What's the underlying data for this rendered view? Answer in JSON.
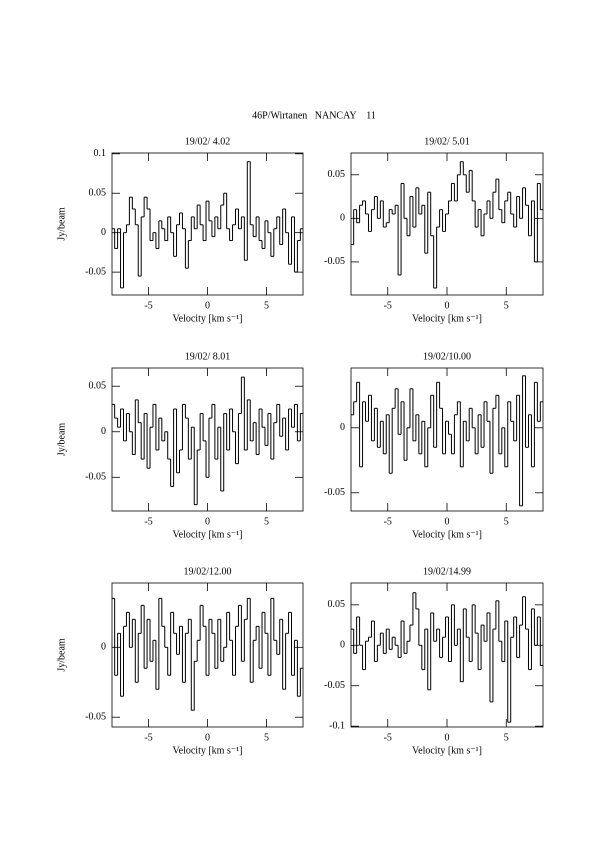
{
  "title": "46P/Wirtanen   NANCAY    11",
  "chart_data": [
    {
      "type": "step",
      "title": "19/02/ 4.02",
      "x_label": "Velocity [km s⁻¹]",
      "y_label": "Jy/beam",
      "x": [
        -8,
        -7.75,
        -7.5,
        -7.25,
        -7,
        -6.75,
        -6.5,
        -6.25,
        -6,
        -5.75,
        -5.5,
        -5.25,
        -5,
        -4.75,
        -4.5,
        -4.25,
        -4,
        -3.75,
        -3.5,
        -3.25,
        -3,
        -2.75,
        -2.5,
        -2.25,
        -2,
        -1.75,
        -1.5,
        -1.25,
        -1,
        -0.75,
        -0.5,
        -0.25,
        0,
        0.25,
        0.5,
        0.75,
        1,
        1.25,
        1.5,
        1.75,
        2,
        2.25,
        2.5,
        2.75,
        3,
        3.25,
        3.5,
        3.75,
        4,
        4.25,
        4.5,
        4.75,
        5,
        5.25,
        5.5,
        5.75,
        6,
        6.25,
        6.5,
        6.75,
        7,
        7.25,
        7.5,
        7.75,
        8
      ],
      "values": [
        0.005,
        -0.02,
        0.005,
        -0.07,
        0,
        0.01,
        0.045,
        0.03,
        0.01,
        -0.055,
        0.02,
        0.045,
        0.03,
        -0.01,
        0,
        -0.02,
        0.015,
        0.005,
        -0.01,
        0.02,
        0,
        -0.03,
        0.01,
        0.025,
        0.005,
        -0.045,
        -0.01,
        0.02,
        0.005,
        0.035,
        0.01,
        -0.01,
        0.04,
        0.015,
        -0.005,
        0.02,
        0.005,
        0.035,
        0.05,
        0.005,
        -0.01,
        0.01,
        0.03,
        0.005,
        0.02,
        -0.035,
        0.09,
        0.01,
        -0.005,
        0.02,
        -0.01,
        -0.02,
        0.015,
        0,
        -0.03,
        0.005,
        0.02,
        -0.015,
        0.03,
        0,
        -0.04,
        0.02,
        -0.05,
        -0.01,
        0.005
      ],
      "xlim": [
        -8.1,
        8.1
      ],
      "ylim": [
        -0.079,
        0.101
      ],
      "xticks": [
        -5,
        0,
        5
      ],
      "yticks": [
        -0.05,
        0,
        0.05,
        0.1
      ],
      "color": "#000000"
    },
    {
      "type": "step",
      "title": "19/02/ 5.01",
      "x_label": "Velocity [km s⁻¹]",
      "x": [
        -8,
        -7.75,
        -7.5,
        -7.25,
        -7,
        -6.75,
        -6.5,
        -6.25,
        -6,
        -5.75,
        -5.5,
        -5.25,
        -5,
        -4.75,
        -4.5,
        -4.25,
        -4,
        -3.75,
        -3.5,
        -3.25,
        -3,
        -2.75,
        -2.5,
        -2.25,
        -2,
        -1.75,
        -1.5,
        -1.25,
        -1,
        -0.75,
        -0.5,
        -0.25,
        0,
        0.25,
        0.5,
        0.75,
        1,
        1.25,
        1.5,
        1.75,
        2,
        2.25,
        2.5,
        2.75,
        3,
        3.25,
        3.5,
        3.75,
        4,
        4.25,
        4.5,
        4.75,
        5,
        5.25,
        5.5,
        5.75,
        6,
        6.25,
        6.5,
        6.75,
        7,
        7.25,
        7.5,
        7.75,
        8
      ],
      "values": [
        -0.03,
        0.01,
        -0.005,
        0.015,
        0.02,
        0.005,
        -0.015,
        0.01,
        0.025,
        0,
        0.02,
        -0.01,
        -0.005,
        0.01,
        0.005,
        0.015,
        -0.065,
        0.04,
        0,
        -0.02,
        0.025,
        -0.01,
        0.035,
        0.005,
        0.015,
        -0.04,
        0.03,
        -0.02,
        -0.08,
        -0.01,
        0.01,
        -0.015,
        0.005,
        0.02,
        0.04,
        0.02,
        0.05,
        0.065,
        0.05,
        0.03,
        0.055,
        0.02,
        -0.01,
        0.01,
        -0.02,
        0.005,
        0.02,
        0,
        0.03,
        0.045,
        0.01,
        -0.005,
        0.02,
        0.03,
        0.005,
        -0.01,
        0.025,
        0,
        0.035,
        0.015,
        -0.02,
        0.02,
        -0.05,
        0.04,
        0.01
      ],
      "xlim": [
        -8.1,
        8.1
      ],
      "ylim": [
        -0.088,
        0.075
      ],
      "xticks": [
        -5,
        0,
        5
      ],
      "yticks": [
        -0.05,
        0,
        0.05
      ],
      "color": "#000000"
    },
    {
      "type": "step",
      "title": "19/02/ 8.01",
      "x_label": "Velocity [km s⁻¹]",
      "y_label": "Jy/beam",
      "x": [
        -8,
        -7.75,
        -7.5,
        -7.25,
        -7,
        -6.75,
        -6.5,
        -6.25,
        -6,
        -5.75,
        -5.5,
        -5.25,
        -5,
        -4.75,
        -4.5,
        -4.25,
        -4,
        -3.75,
        -3.5,
        -3.25,
        -3,
        -2.75,
        -2.5,
        -2.25,
        -2,
        -1.75,
        -1.5,
        -1.25,
        -1,
        -0.75,
        -0.5,
        -0.25,
        0,
        0.25,
        0.5,
        0.75,
        1,
        1.25,
        1.5,
        1.75,
        2,
        2.25,
        2.5,
        2.75,
        3,
        3.25,
        3.5,
        3.75,
        4,
        4.25,
        4.5,
        4.75,
        5,
        5.25,
        5.5,
        5.75,
        6,
        6.25,
        6.5,
        6.75,
        7,
        7.25,
        7.5,
        7.75,
        8
      ],
      "values": [
        0.03,
        0.015,
        0.005,
        0.025,
        -0.01,
        0.02,
        0,
        -0.025,
        0.035,
        0.01,
        -0.03,
        0.02,
        -0.04,
        0.005,
        0.03,
        -0.02,
        0.015,
        -0.01,
        0,
        -0.03,
        -0.06,
        0.025,
        -0.045,
        -0.02,
        0.03,
        0.015,
        -0.03,
        0.005,
        -0.08,
        -0.02,
        0.02,
        -0.01,
        -0.05,
        0.015,
        0.03,
        -0.03,
        0.005,
        -0.065,
        0.02,
        -0.02,
        0.025,
        0,
        -0.035,
        0.02,
        0.06,
        -0.02,
        0.035,
        -0.01,
        0.01,
        -0.025,
        0.025,
        0.005,
        -0.015,
        0.02,
        -0.03,
        0.01,
        0.03,
        -0.005,
        0.015,
        -0.02,
        0.025,
        0.005,
        0.03,
        -0.01,
        0.02
      ],
      "xlim": [
        -8.1,
        8.1
      ],
      "ylim": [
        -0.087,
        0.07
      ],
      "xticks": [
        -5,
        0,
        5
      ],
      "yticks": [
        -0.05,
        0,
        0.05
      ],
      "color": "#000000"
    },
    {
      "type": "step",
      "title": "19/02/10.00",
      "x_label": "Velocity [km s⁻¹]",
      "x": [
        -8,
        -7.75,
        -7.5,
        -7.25,
        -7,
        -6.75,
        -6.5,
        -6.25,
        -6,
        -5.75,
        -5.5,
        -5.25,
        -5,
        -4.75,
        -4.5,
        -4.25,
        -4,
        -3.75,
        -3.5,
        -3.25,
        -3,
        -2.75,
        -2.5,
        -2.25,
        -2,
        -1.75,
        -1.5,
        -1.25,
        -1,
        -0.75,
        -0.5,
        -0.25,
        0,
        0.25,
        0.5,
        0.75,
        1,
        1.25,
        1.5,
        1.75,
        2,
        2.25,
        2.5,
        2.75,
        3,
        3.25,
        3.5,
        3.75,
        4,
        4.25,
        4.5,
        4.75,
        5,
        5.25,
        5.5,
        5.75,
        6,
        6.25,
        6.5,
        6.75,
        7,
        7.25,
        7.5,
        7.75,
        8
      ],
      "values": [
        0.01,
        0.02,
        0.035,
        -0.03,
        0.02,
        0.005,
        0.025,
        -0.01,
        0.015,
        -0.015,
        0.005,
        -0.02,
        0.01,
        -0.035,
        0.015,
        0.03,
        -0.005,
        0.02,
        -0.025,
        0,
        0.03,
        -0.01,
        0.01,
        -0.02,
        0.005,
        -0.03,
        0,
        0.025,
        -0.015,
        0.035,
        0.015,
        -0.02,
        0.005,
        -0.005,
        -0.02,
        0.01,
        0.02,
        -0.03,
        0.005,
        -0.01,
        0.015,
        0,
        -0.02,
        0.01,
        -0.015,
        0.02,
        0.005,
        -0.035,
        0.015,
        0.025,
        -0.02,
        0,
        -0.03,
        0.02,
        0.005,
        -0.01,
        0.025,
        -0.06,
        0.04,
        -0.015,
        0.01,
        -0.03,
        0.035,
        0.005,
        0.02
      ],
      "xlim": [
        -8.1,
        8.1
      ],
      "ylim": [
        -0.064,
        0.046
      ],
      "xticks": [
        -5,
        0,
        5
      ],
      "yticks": [
        -0.05,
        0
      ],
      "color": "#000000"
    },
    {
      "type": "step",
      "title": "19/02/12.00",
      "x_label": "Velocity [km s⁻¹]",
      "y_label": "Jy/beam",
      "x": [
        -8,
        -7.75,
        -7.5,
        -7.25,
        -7,
        -6.75,
        -6.5,
        -6.25,
        -6,
        -5.75,
        -5.5,
        -5.25,
        -5,
        -4.75,
        -4.5,
        -4.25,
        -4,
        -3.75,
        -3.5,
        -3.25,
        -3,
        -2.75,
        -2.5,
        -2.25,
        -2,
        -1.75,
        -1.5,
        -1.25,
        -1,
        -0.75,
        -0.5,
        -0.25,
        0,
        0.25,
        0.5,
        0.75,
        1,
        1.25,
        1.5,
        1.75,
        2,
        2.25,
        2.5,
        2.75,
        3,
        3.25,
        3.5,
        3.75,
        4,
        4.25,
        4.5,
        4.75,
        5,
        5.25,
        5.5,
        5.75,
        6,
        6.25,
        6.5,
        6.75,
        7,
        7.25,
        7.5,
        7.75,
        8
      ],
      "values": [
        0.035,
        -0.02,
        0.01,
        -0.035,
        0.015,
        0.025,
        0,
        0.02,
        -0.025,
        0.01,
        0.03,
        -0.015,
        0.02,
        -0.01,
        0.005,
        -0.03,
        0.035,
        0.015,
        0,
        -0.02,
        0.025,
        0.01,
        -0.005,
        0.015,
        -0.025,
        0.01,
        0.02,
        -0.045,
        -0.01,
        0.005,
        0.03,
        0.015,
        -0.02,
        0.02,
        0.01,
        -0.015,
        0.02,
        -0.01,
        0,
        0.025,
        0.005,
        -0.02,
        0.015,
        0.03,
        -0.01,
        0.02,
        0.035,
        -0.025,
        0.005,
        0.015,
        -0.015,
        0.025,
        0.01,
        -0.02,
        0.035,
        0.005,
        -0.005,
        0.02,
        -0.03,
        0.01,
        0.025,
        -0.02,
        0.005,
        -0.035,
        -0.015
      ],
      "xlim": [
        -8.1,
        8.1
      ],
      "ylim": [
        -0.057,
        0.046
      ],
      "xticks": [
        -5,
        0,
        5
      ],
      "yticks": [
        -0.05,
        0
      ],
      "color": "#000000"
    },
    {
      "type": "step",
      "title": "19/02/14.99",
      "x_label": "Velocity [km s⁻¹]",
      "x": [
        -8,
        -7.75,
        -7.5,
        -7.25,
        -7,
        -6.75,
        -6.5,
        -6.25,
        -6,
        -5.75,
        -5.5,
        -5.25,
        -5,
        -4.75,
        -4.5,
        -4.25,
        -4,
        -3.75,
        -3.5,
        -3.25,
        -3,
        -2.75,
        -2.5,
        -2.25,
        -2,
        -1.75,
        -1.5,
        -1.25,
        -1,
        -0.75,
        -0.5,
        -0.25,
        0,
        0.25,
        0.5,
        0.75,
        1,
        1.25,
        1.5,
        1.75,
        2,
        2.25,
        2.5,
        2.75,
        3,
        3.25,
        3.5,
        3.75,
        4,
        4.25,
        4.5,
        4.75,
        5,
        5.25,
        5.5,
        5.75,
        6,
        6.25,
        6.5,
        6.75,
        7,
        7.25,
        7.5,
        7.75,
        8
      ],
      "values": [
        0.02,
        -0.01,
        0.035,
        0,
        -0.03,
        0.005,
        0.01,
        0.03,
        -0.02,
        0,
        0.015,
        -0.01,
        0.02,
        -0.005,
        0.01,
        0,
        -0.015,
        0.03,
        -0.01,
        0.005,
        0.025,
        0.065,
        0.045,
        0,
        -0.03,
        0.02,
        -0.055,
        0.04,
        0.005,
        0.02,
        -0.015,
        0.01,
        0.035,
        -0.02,
        0.05,
        0,
        0.02,
        -0.045,
        0.045,
        0.01,
        -0.02,
        0.05,
        0.015,
        -0.03,
        0.025,
        0.005,
        0.04,
        -0.07,
        0.02,
        0.055,
        0.005,
        -0.02,
        0.03,
        -0.095,
        0.01,
        0.035,
        -0.015,
        0.025,
        0.06,
        0.02,
        -0.03,
        0.045,
        0,
        0.035,
        -0.025
      ],
      "xlim": [
        -8.1,
        8.1
      ],
      "ylim": [
        -0.101,
        0.077
      ],
      "xticks": [
        -5,
        0,
        5
      ],
      "yticks": [
        -0.1,
        -0.05,
        0,
        0.05
      ],
      "color": "#000000"
    }
  ]
}
